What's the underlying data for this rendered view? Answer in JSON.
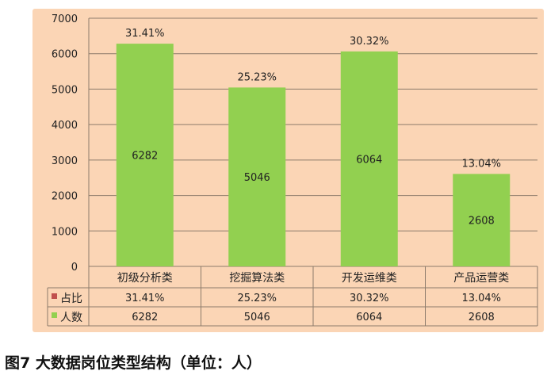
{
  "chart_data": {
    "type": "bar",
    "categories": [
      "初级分析类",
      "挖掘算法类",
      "开发运维类",
      "产品运营类"
    ],
    "series": [
      {
        "name": "人数",
        "values": [
          6282,
          5046,
          6064,
          2608
        ],
        "color": "#92d050"
      },
      {
        "name": "占比",
        "values": [
          "31.41%",
          "25.23%",
          "30.32%",
          "13.04%"
        ],
        "color": "#c0504d"
      }
    ],
    "ylim": [
      0,
      7000
    ],
    "yticks": [
      0,
      1000,
      2000,
      3000,
      4000,
      5000,
      6000,
      7000
    ],
    "grid": true,
    "legend": "data-table",
    "background": "#fbd5b5"
  },
  "caption": "图7 大数据岗位类型结构（单位：人）"
}
